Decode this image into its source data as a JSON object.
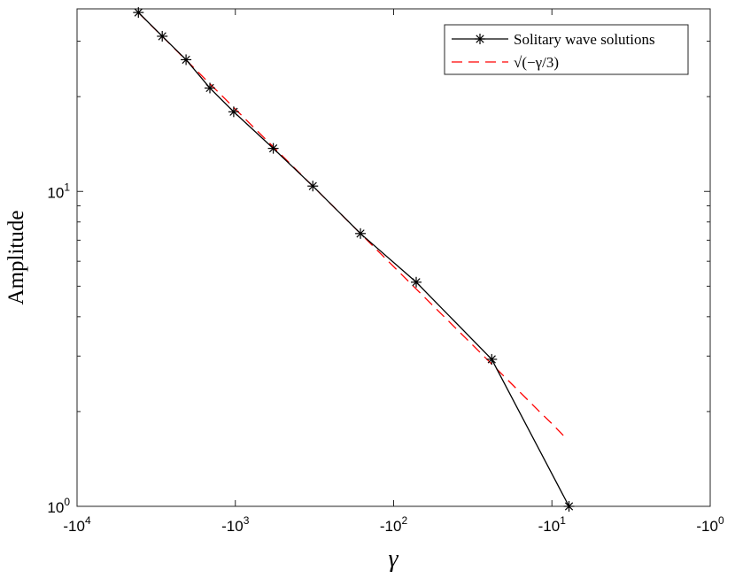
{
  "chart_data": {
    "type": "line",
    "title": "",
    "xlabel": "γ",
    "ylabel": "Amplitude",
    "xscale": "log-negative",
    "yscale": "log",
    "xlim": [
      -10000,
      -1
    ],
    "ylim": [
      1,
      38
    ],
    "grid": false,
    "legend_position": "top-right",
    "x_ticks": [
      {
        "value": -10000,
        "base": "-10",
        "exp": "4"
      },
      {
        "value": -1000,
        "base": "-10",
        "exp": "3"
      },
      {
        "value": -100,
        "base": "-10",
        "exp": "2"
      },
      {
        "value": -10,
        "base": "-10",
        "exp": "1"
      },
      {
        "value": -1,
        "base": "-10",
        "exp": "0"
      }
    ],
    "y_ticks": [
      {
        "value": 1,
        "base": "10",
        "exp": "0"
      },
      {
        "value": 10,
        "base": "10",
        "exp": "1"
      }
    ],
    "series": [
      {
        "name": "Solitary wave solutions",
        "color": "#000000",
        "dash": "solid",
        "marker": "asterisk",
        "x": [
          -4096,
          -2896,
          -2048,
          -1448,
          -1024,
          -576,
          -324,
          -162,
          -72,
          -24,
          -7.8
        ],
        "y": [
          37,
          31.1,
          26.2,
          21.3,
          17.9,
          13.7,
          10.4,
          7.35,
          5.15,
          2.93,
          1.0
        ]
      },
      {
        "name": "√(−γ/3)",
        "color": "#ff0000",
        "dash": "dashed",
        "marker": "none",
        "x": [
          -4096,
          -2048,
          -1024,
          -512,
          -256,
          -128,
          -64,
          -32,
          -24,
          -16,
          -12,
          -10,
          -8
        ],
        "y": [
          36.95,
          26.13,
          18.48,
          13.06,
          9.24,
          6.53,
          4.62,
          3.27,
          2.83,
          2.31,
          2.0,
          1.83,
          1.63
        ]
      }
    ]
  }
}
